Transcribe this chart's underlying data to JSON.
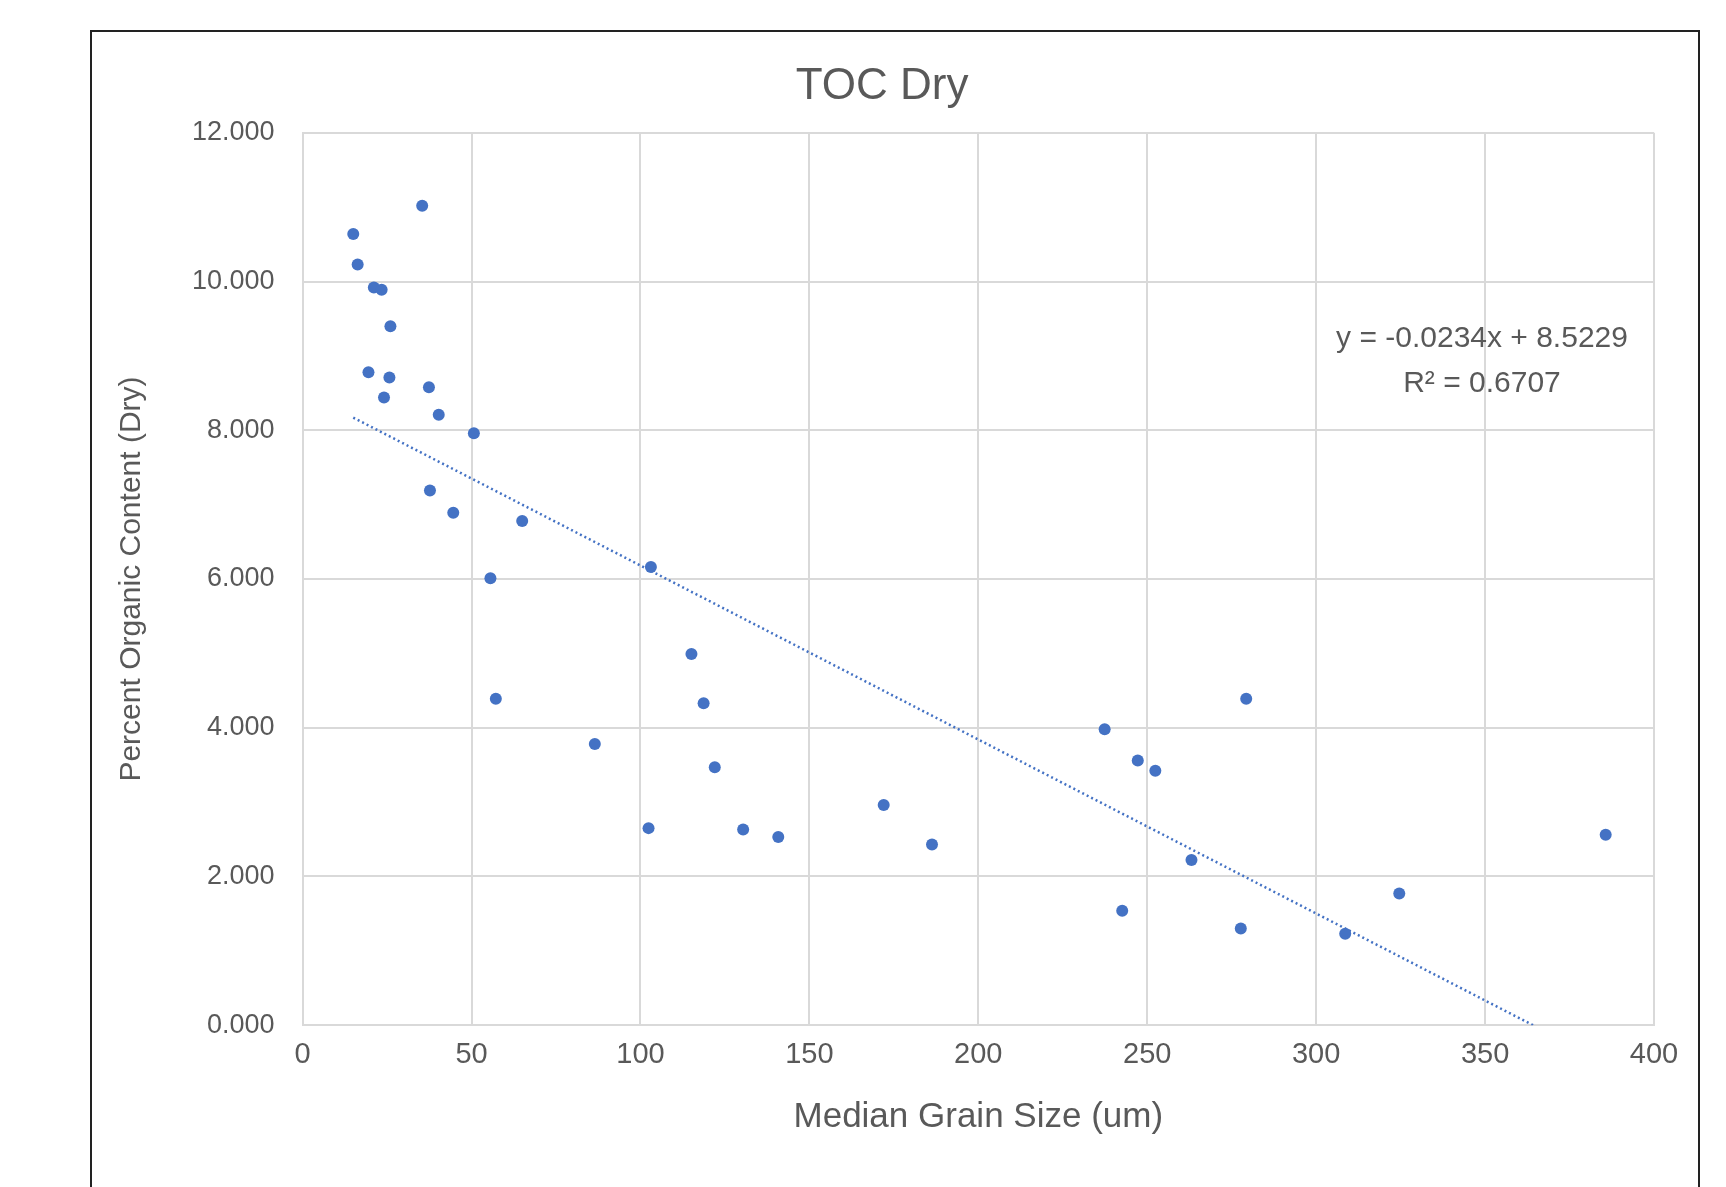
{
  "chart_data": {
    "type": "scatter",
    "title": "TOC Dry",
    "xlabel": "Median Grain Size (um)",
    "ylabel": "Percent Organic Content (Dry)",
    "xlim": [
      0,
      400
    ],
    "xticks": [
      0,
      50,
      100,
      150,
      200,
      250,
      300,
      350,
      400
    ],
    "ylim": [
      0,
      12
    ],
    "yticks": [
      {
        "value": 0,
        "label": "0.000"
      },
      {
        "value": 2,
        "label": "2.000"
      },
      {
        "value": 4,
        "label": "4.000"
      },
      {
        "value": 6,
        "label": "6.000"
      },
      {
        "value": 8,
        "label": "8.000"
      },
      {
        "value": 10,
        "label": "10.000"
      },
      {
        "value": 12,
        "label": "12.000"
      }
    ],
    "grid": true,
    "legend": false,
    "marker": "circle",
    "annotations": [
      "y = -0.0234x + 8.5229",
      "R² = 0.6707"
    ],
    "series": [
      {
        "color": "#4472c4",
        "x": [
          15.0,
          16.3,
          21.1,
          23.4,
          26.0,
          35.4,
          19.5,
          25.7,
          24.1,
          37.4,
          40.3,
          50.7,
          37.7,
          44.6,
          65.0,
          55.6,
          57.2,
          103.1,
          86.5,
          102.4,
          115.1,
          118.7,
          122.0,
          130.4,
          140.8,
          172.0,
          186.3,
          237.4,
          247.2,
          252.4,
          279.3,
          263.1,
          242.6,
          277.7,
          308.6,
          324.6,
          385.7
        ],
        "values": [
          10.64,
          10.23,
          9.92,
          9.89,
          9.4,
          11.02,
          8.78,
          8.71,
          8.44,
          8.58,
          8.21,
          7.96,
          7.19,
          6.89,
          6.78,
          6.01,
          4.39,
          6.16,
          3.78,
          2.65,
          4.99,
          4.33,
          3.47,
          2.63,
          2.53,
          2.96,
          2.43,
          3.98,
          3.56,
          3.42,
          4.39,
          2.22,
          1.54,
          1.3,
          1.23,
          1.77,
          2.56
        ]
      },
      {
        "type": "line",
        "color": "#4472c4",
        "line_style": "dotted",
        "marker": "none",
        "x": [
          15,
          364.2
        ],
        "values": [
          8.17,
          0
        ]
      }
    ]
  }
}
